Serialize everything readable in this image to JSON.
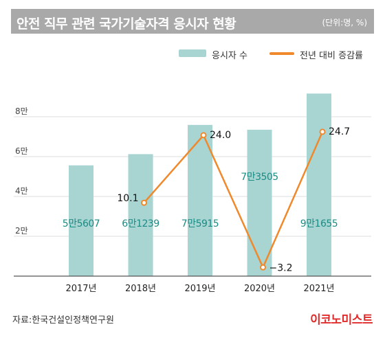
{
  "title": "안전 직무 관련 국가기술자격 응시자 현황",
  "unit": "(단위:명, %)",
  "legend": {
    "bar_label": "응시자 수",
    "line_label": "전년 대비 증감률"
  },
  "source": "자료:한국건설인정책연구원",
  "brand": "이코노미스트",
  "colors": {
    "bar": "#a8d4d2",
    "line": "#f0882c",
    "bar_label": "#1a8c84",
    "title_bg": "#a9a9a9",
    "brand": "#e02b2b"
  },
  "chart_data": {
    "type": "bar",
    "categories": [
      "2017년",
      "2018년",
      "2019년",
      "2020년",
      "2021년"
    ],
    "series": [
      {
        "name": "응시자 수",
        "type": "bar",
        "values": [
          55607,
          61239,
          75915,
          73505,
          91655
        ],
        "labels": [
          "5만5607",
          "6만1239",
          "7만5915",
          "7만3505",
          "9만1655"
        ]
      },
      {
        "name": "전년 대비 증감률",
        "type": "line",
        "values": [
          null,
          10.1,
          24.0,
          -3.2,
          24.7
        ],
        "labels": [
          "",
          "10.1",
          "24.0",
          "−3.2",
          "24.7"
        ]
      }
    ],
    "y_ticks": [
      "2만",
      "4만",
      "6만",
      "8만"
    ],
    "y_tick_values": [
      20000,
      40000,
      60000,
      80000
    ],
    "ylim": [
      0,
      100000
    ],
    "line_ylim": [
      -5,
      36
    ],
    "grid": true
  }
}
